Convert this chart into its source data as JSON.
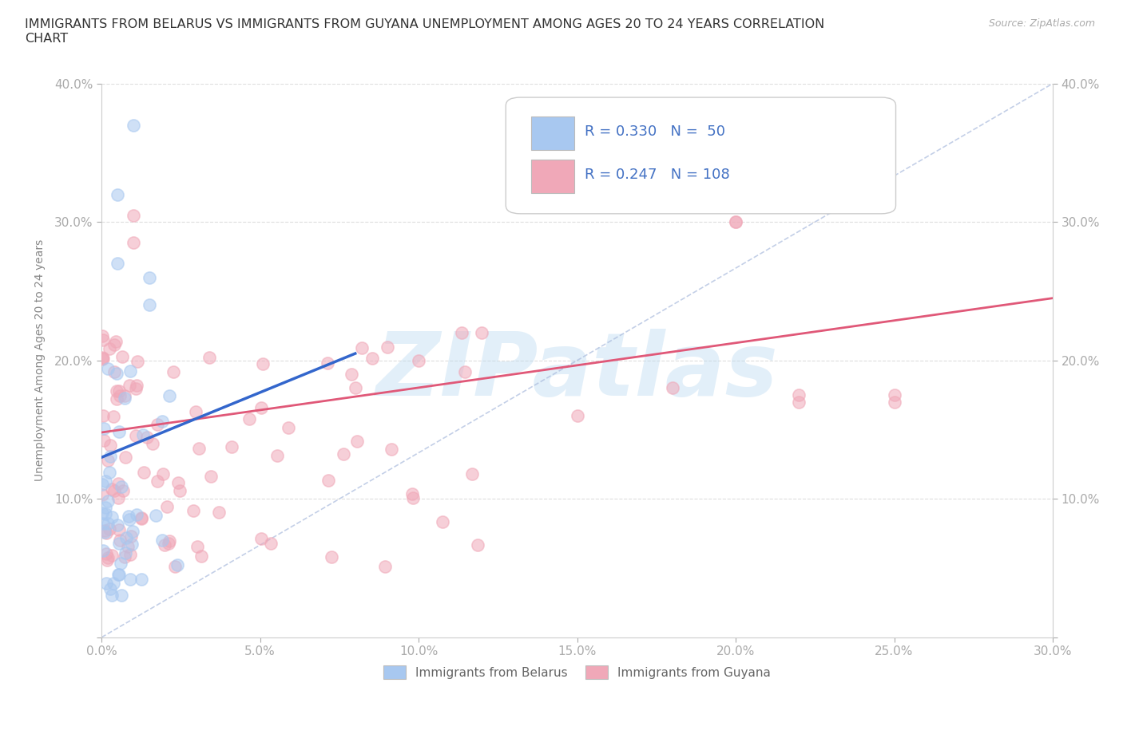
{
  "title": "IMMIGRANTS FROM BELARUS VS IMMIGRANTS FROM GUYANA UNEMPLOYMENT AMONG AGES 20 TO 24 YEARS CORRELATION\nCHART",
  "source": "Source: ZipAtlas.com",
  "ylabel_label": "Unemployment Among Ages 20 to 24 years",
  "color_belarus": "#a8c8f0",
  "color_guyana": "#f0a8b8",
  "color_trend_belarus": "#3366cc",
  "color_trend_guyana": "#e05878",
  "color_diagonal": "#aabbdd",
  "watermark": "ZIPatlas",
  "xlim": [
    0.0,
    0.3
  ],
  "ylim": [
    0.0,
    0.4
  ],
  "figsize": [
    14.06,
    9.3
  ],
  "dpi": 100,
  "scatter_size": 120,
  "scatter_alpha": 0.55,
  "scatter_linewidth": 1.2
}
